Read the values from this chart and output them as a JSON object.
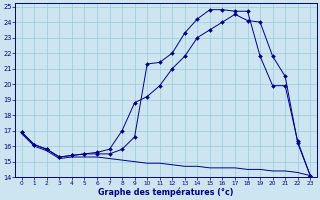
{
  "bg_color": "#cce5f0",
  "line_color": "#00008b",
  "grid_color": "#99ccdd",
  "xlabel": "Graphe des températures (°c)",
  "xlim": [
    -0.5,
    23.5
  ],
  "ylim": [
    14,
    25.2
  ],
  "yticks": [
    14,
    15,
    16,
    17,
    18,
    19,
    20,
    21,
    22,
    23,
    24,
    25
  ],
  "xticks": [
    0,
    1,
    2,
    3,
    4,
    5,
    6,
    7,
    8,
    9,
    10,
    11,
    12,
    13,
    14,
    15,
    16,
    17,
    18,
    19,
    20,
    21,
    22,
    23
  ],
  "curve1_x": [
    0,
    1,
    2,
    3,
    4,
    5,
    6,
    7,
    8,
    9,
    10,
    11,
    12,
    13,
    14,
    15,
    16,
    17,
    18,
    19,
    20,
    21,
    22,
    23
  ],
  "curve1_y": [
    16.9,
    16.1,
    15.8,
    15.3,
    15.4,
    15.5,
    15.5,
    15.5,
    15.8,
    16.6,
    21.3,
    21.4,
    22.0,
    23.3,
    24.2,
    24.8,
    24.8,
    24.7,
    24.7,
    21.8,
    19.9,
    19.9,
    16.3,
    14.1
  ],
  "curve2_x": [
    0,
    1,
    2,
    3,
    4,
    5,
    6,
    7,
    8,
    9,
    10,
    11,
    12,
    13,
    14,
    15,
    16,
    17,
    18,
    19,
    20,
    21,
    22,
    23
  ],
  "curve2_y": [
    16.9,
    16.1,
    15.8,
    15.3,
    15.4,
    15.5,
    15.6,
    15.8,
    17.0,
    18.8,
    19.2,
    19.9,
    21.0,
    21.8,
    23.0,
    23.5,
    24.0,
    24.5,
    24.1,
    24.0,
    21.8,
    20.5,
    16.2,
    14.1
  ],
  "curve3_x": [
    0,
    1,
    2,
    3,
    4,
    5,
    6,
    7,
    8,
    9,
    10,
    11,
    12,
    13,
    14,
    15,
    16,
    17,
    18,
    19,
    20,
    21,
    22,
    23
  ],
  "curve3_y": [
    16.8,
    16.0,
    15.7,
    15.2,
    15.3,
    15.3,
    15.3,
    15.2,
    15.1,
    15.0,
    14.9,
    14.9,
    14.8,
    14.7,
    14.7,
    14.6,
    14.6,
    14.6,
    14.5,
    14.5,
    14.4,
    14.4,
    14.3,
    14.1
  ]
}
